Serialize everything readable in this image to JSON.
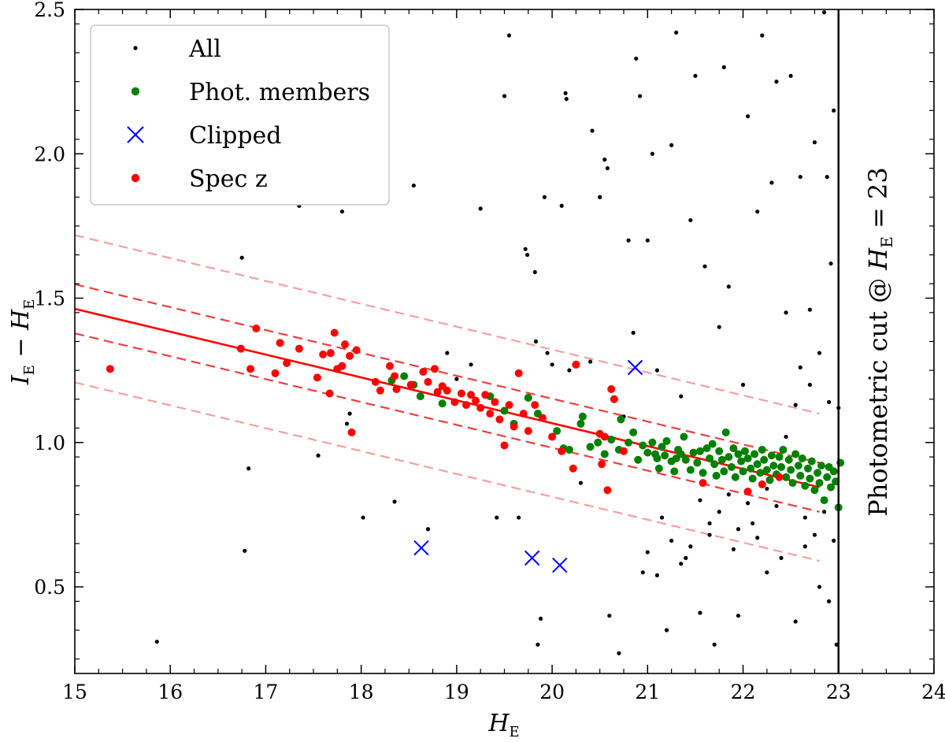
{
  "chart_data": {
    "type": "scatter",
    "title": "",
    "xlabel": "H_E",
    "ylabel": "I_E − H_E",
    "xlim": [
      15,
      24
    ],
    "ylim": [
      0.2,
      2.5
    ],
    "xticks": [
      15,
      16,
      17,
      18,
      19,
      20,
      21,
      22,
      23,
      24
    ],
    "yticks": [
      0.5,
      1.0,
      1.5,
      2.0,
      2.5
    ],
    "xtick_labels": [
      "15",
      "16",
      "17",
      "18",
      "19",
      "20",
      "21",
      "22",
      "23",
      "24"
    ],
    "ytick_labels": [
      "0.5",
      "1.0",
      "1.5",
      "2.0",
      "2.5"
    ],
    "grid": false,
    "legend": {
      "position": "top-left",
      "entries": [
        {
          "label": "All",
          "marker": "dot",
          "color": "#000000"
        },
        {
          "label": "Phot. members",
          "marker": "circle",
          "color": "#008000"
        },
        {
          "label": "Clipped",
          "marker": "x",
          "color": "#0000ff"
        },
        {
          "label": "Spec z",
          "marker": "circle",
          "color": "#ff0000"
        }
      ]
    },
    "red_sequence": {
      "x_range": [
        15,
        22.8
      ],
      "fit": {
        "at_x15": 1.463,
        "at_x22_8": 0.845,
        "color": "#ff0000"
      },
      "inner_band_offset": 0.085,
      "outer_band_offset": 0.255,
      "inner_band_color": "#e84040",
      "outer_band_color": "#f4a0a0"
    },
    "cut": {
      "x": 23,
      "label": "Photometric cut @ H_E = 23"
    },
    "series": [
      {
        "name": "Clipped",
        "color": "#0000ff",
        "points": [
          [
            18.63,
            0.635
          ],
          [
            19.79,
            0.6
          ],
          [
            20.08,
            0.575
          ],
          [
            20.87,
            1.26
          ]
        ]
      },
      {
        "name": "Spec z",
        "color": "#ff0000",
        "points": [
          [
            15.37,
            1.255
          ],
          [
            16.74,
            1.325
          ],
          [
            16.84,
            1.255
          ],
          [
            16.9,
            1.395
          ],
          [
            17.1,
            1.24
          ],
          [
            17.15,
            1.345
          ],
          [
            17.22,
            1.275
          ],
          [
            17.35,
            1.325
          ],
          [
            17.54,
            1.225
          ],
          [
            17.6,
            1.305
          ],
          [
            17.67,
            1.17
          ],
          [
            17.68,
            1.31
          ],
          [
            17.72,
            1.38
          ],
          [
            17.75,
            1.255
          ],
          [
            17.8,
            1.265
          ],
          [
            17.83,
            1.34
          ],
          [
            17.88,
            1.3
          ],
          [
            17.9,
            1.035
          ],
          [
            17.95,
            1.32
          ],
          [
            18.15,
            1.21
          ],
          [
            18.2,
            1.18
          ],
          [
            18.3,
            1.265
          ],
          [
            18.35,
            1.23
          ],
          [
            18.37,
            1.185
          ],
          [
            18.52,
            1.2
          ],
          [
            18.65,
            1.245
          ],
          [
            18.7,
            1.21
          ],
          [
            18.77,
            1.255
          ],
          [
            18.8,
            1.175
          ],
          [
            18.85,
            1.195
          ],
          [
            18.9,
            1.18
          ],
          [
            18.98,
            1.14
          ],
          [
            19.05,
            1.17
          ],
          [
            19.1,
            1.13
          ],
          [
            19.15,
            1.165
          ],
          [
            19.2,
            1.145
          ],
          [
            19.25,
            1.12
          ],
          [
            19.3,
            1.165
          ],
          [
            19.35,
            1.1
          ],
          [
            19.4,
            1.14
          ],
          [
            19.45,
            1.08
          ],
          [
            19.5,
            0.99
          ],
          [
            19.55,
            1.13
          ],
          [
            19.6,
            1.055
          ],
          [
            19.65,
            1.24
          ],
          [
            19.7,
            1.1
          ],
          [
            19.75,
            1.04
          ],
          [
            19.82,
            1.13
          ],
          [
            19.9,
            1.085
          ],
          [
            20.0,
            1.02
          ],
          [
            20.1,
            0.97
          ],
          [
            20.22,
            0.91
          ],
          [
            20.25,
            1.27
          ],
          [
            20.5,
            1.03
          ],
          [
            20.52,
            0.925
          ],
          [
            20.55,
            1.02
          ],
          [
            20.58,
            0.835
          ],
          [
            20.62,
            1.185
          ],
          [
            20.65,
            1.15
          ],
          [
            20.75,
            0.97
          ],
          [
            21.58,
            0.86
          ],
          [
            22.05,
            0.83
          ],
          [
            22.2,
            0.855
          ],
          [
            22.38,
            0.88
          ]
        ]
      },
      {
        "name": "Phot. members",
        "color": "#008000",
        "points": [
          [
            18.32,
            1.215
          ],
          [
            18.45,
            1.23
          ],
          [
            18.55,
            1.2
          ],
          [
            18.62,
            1.16
          ],
          [
            18.85,
            1.135
          ],
          [
            19.35,
            1.16
          ],
          [
            19.5,
            1.11
          ],
          [
            19.6,
            1.065
          ],
          [
            19.75,
            1.155
          ],
          [
            19.85,
            1.1
          ],
          [
            20.05,
            1.04
          ],
          [
            20.12,
            0.98
          ],
          [
            20.18,
            0.975
          ],
          [
            20.3,
            1.065
          ],
          [
            20.32,
            1.09
          ],
          [
            20.4,
            0.985
          ],
          [
            20.48,
            1.0
          ],
          [
            20.55,
            0.96
          ],
          [
            20.62,
            1.01
          ],
          [
            20.7,
            0.975
          ],
          [
            20.72,
            1.08
          ],
          [
            20.8,
            1.0
          ],
          [
            20.85,
            1.035
          ],
          [
            20.9,
            0.94
          ],
          [
            20.95,
            0.99
          ],
          [
            21.0,
            0.965
          ],
          [
            21.05,
            1.0
          ],
          [
            21.08,
            0.96
          ],
          [
            21.1,
            0.945
          ],
          [
            21.12,
            0.91
          ],
          [
            21.15,
            0.985
          ],
          [
            21.18,
            0.955
          ],
          [
            21.2,
            1.005
          ],
          [
            21.25,
            0.935
          ],
          [
            21.28,
            0.9
          ],
          [
            21.3,
            0.945
          ],
          [
            21.32,
            0.975
          ],
          [
            21.35,
            0.96
          ],
          [
            21.38,
            1.02
          ],
          [
            21.4,
            0.94
          ],
          [
            21.45,
            0.905
          ],
          [
            21.48,
            0.965
          ],
          [
            21.52,
            0.93
          ],
          [
            21.55,
            0.97
          ],
          [
            21.58,
            0.895
          ],
          [
            21.62,
            0.98
          ],
          [
            21.65,
            0.945
          ],
          [
            21.68,
            0.995
          ],
          [
            21.7,
            0.925
          ],
          [
            21.72,
            0.885
          ],
          [
            21.75,
            0.97
          ],
          [
            21.78,
            0.94
          ],
          [
            21.8,
            0.9
          ],
          [
            21.82,
            1.035
          ],
          [
            21.85,
            0.95
          ],
          [
            21.88,
            0.915
          ],
          [
            21.9,
            0.98
          ],
          [
            21.92,
            0.88
          ],
          [
            21.95,
            0.96
          ],
          [
            21.98,
            0.935
          ],
          [
            22.0,
            0.9
          ],
          [
            22.02,
            0.97
          ],
          [
            22.05,
            0.945
          ],
          [
            22.08,
            0.91
          ],
          [
            22.1,
            0.875
          ],
          [
            22.12,
            0.96
          ],
          [
            22.15,
            0.925
          ],
          [
            22.18,
            0.895
          ],
          [
            22.2,
            0.975
          ],
          [
            22.22,
            0.94
          ],
          [
            22.25,
            0.905
          ],
          [
            22.28,
            0.87
          ],
          [
            22.3,
            0.955
          ],
          [
            22.32,
            0.92
          ],
          [
            22.35,
            0.89
          ],
          [
            22.38,
            0.95
          ],
          [
            22.4,
            0.915
          ],
          [
            22.42,
            0.975
          ],
          [
            22.45,
            0.88
          ],
          [
            22.48,
            0.94
          ],
          [
            22.5,
            0.905
          ],
          [
            22.52,
            0.86
          ],
          [
            22.55,
            0.96
          ],
          [
            22.58,
            0.92
          ],
          [
            22.6,
            0.885
          ],
          [
            22.62,
            0.945
          ],
          [
            22.65,
            0.85
          ],
          [
            22.68,
            0.91
          ],
          [
            22.7,
            0.875
          ],
          [
            22.72,
            0.935
          ],
          [
            22.75,
            0.835
          ],
          [
            22.78,
            0.895
          ],
          [
            22.8,
            0.86
          ],
          [
            22.82,
            0.92
          ],
          [
            22.85,
            0.8
          ],
          [
            22.88,
            0.88
          ],
          [
            22.9,
            0.915
          ],
          [
            22.92,
            0.845
          ],
          [
            22.95,
            0.9
          ],
          [
            22.97,
            0.865
          ],
          [
            23.0,
            0.775
          ],
          [
            23.02,
            0.93
          ]
        ]
      },
      {
        "name": "All",
        "color": "#000000",
        "points": [
          [
            15.86,
            0.31
          ],
          [
            16.75,
            1.64
          ],
          [
            16.78,
            0.625
          ],
          [
            16.82,
            0.91
          ],
          [
            17.35,
            1.82
          ],
          [
            17.55,
            0.955
          ],
          [
            17.8,
            1.8
          ],
          [
            17.85,
            1.065
          ],
          [
            17.88,
            1.1
          ],
          [
            18.02,
            0.74
          ],
          [
            18.35,
            0.795
          ],
          [
            18.55,
            1.89
          ],
          [
            18.7,
            0.7
          ],
          [
            18.9,
            1.31
          ],
          [
            19.0,
            1.22
          ],
          [
            19.15,
            1.27
          ],
          [
            19.25,
            1.81
          ],
          [
            19.42,
            0.74
          ],
          [
            19.5,
            2.2
          ],
          [
            19.55,
            2.41
          ],
          [
            19.65,
            0.74
          ],
          [
            19.72,
            1.67
          ],
          [
            19.74,
            1.65
          ],
          [
            19.82,
            1.59
          ],
          [
            19.83,
            1.35
          ],
          [
            19.85,
            0.3
          ],
          [
            19.88,
            0.39
          ],
          [
            19.92,
            1.85
          ],
          [
            19.95,
            1.31
          ],
          [
            20.0,
            1.27
          ],
          [
            20.1,
            1.82
          ],
          [
            20.14,
            2.21
          ],
          [
            20.15,
            2.19
          ],
          [
            20.18,
            1.25
          ],
          [
            20.3,
            0.86
          ],
          [
            20.4,
            1.28
          ],
          [
            20.42,
            2.08
          ],
          [
            20.5,
            1.85
          ],
          [
            20.55,
            1.98
          ],
          [
            20.58,
            1.95
          ],
          [
            20.6,
            0.4
          ],
          [
            20.7,
            0.27
          ],
          [
            20.75,
            1.09
          ],
          [
            20.8,
            1.7
          ],
          [
            20.85,
            1.38
          ],
          [
            20.88,
            2.33
          ],
          [
            20.92,
            2.2
          ],
          [
            20.95,
            0.55
          ],
          [
            21.0,
            1.7
          ],
          [
            21.05,
            2.0
          ],
          [
            21.1,
            1.25
          ],
          [
            21.15,
            0.74
          ],
          [
            21.2,
            0.35
          ],
          [
            21.25,
            2.03
          ],
          [
            21.3,
            2.42
          ],
          [
            21.35,
            1.16
          ],
          [
            21.4,
            0.6
          ],
          [
            21.45,
            1.77
          ],
          [
            21.5,
            2.27
          ],
          [
            21.55,
            0.41
          ],
          [
            21.6,
            1.61
          ],
          [
            21.65,
            0.72
          ],
          [
            21.7,
            0.3
          ],
          [
            21.75,
            1.4
          ],
          [
            21.8,
            2.3
          ],
          [
            21.85,
            1.54
          ],
          [
            21.9,
            0.63
          ],
          [
            21.95,
            0.4
          ],
          [
            22.0,
            1.2
          ],
          [
            22.05,
            2.13
          ],
          [
            22.1,
            0.72
          ],
          [
            22.15,
            1.8
          ],
          [
            22.2,
            2.41
          ],
          [
            22.25,
            0.55
          ],
          [
            22.3,
            1.9
          ],
          [
            22.35,
            2.25
          ],
          [
            22.4,
            0.6
          ],
          [
            22.45,
            1.45
          ],
          [
            22.5,
            2.27
          ],
          [
            22.55,
            0.38
          ],
          [
            22.6,
            1.92
          ],
          [
            22.65,
            0.64
          ],
          [
            22.7,
            1.46
          ],
          [
            22.75,
            2.04
          ],
          [
            22.8,
            0.5
          ],
          [
            22.85,
            2.49
          ],
          [
            22.88,
            1.92
          ],
          [
            22.9,
            0.45
          ],
          [
            22.92,
            1.62
          ],
          [
            22.95,
            2.15
          ],
          [
            22.98,
            0.3
          ],
          [
            23.0,
            1.12
          ],
          [
            22.55,
            1.13
          ],
          [
            22.45,
            1.02
          ],
          [
            22.35,
            0.78
          ],
          [
            22.25,
            0.84
          ],
          [
            22.15,
            0.67
          ],
          [
            22.05,
            0.79
          ],
          [
            21.95,
            0.7
          ],
          [
            21.85,
            0.82
          ],
          [
            21.75,
            0.76
          ],
          [
            21.65,
            0.68
          ],
          [
            21.55,
            0.8
          ],
          [
            21.45,
            0.64
          ],
          [
            21.35,
            0.58
          ],
          [
            21.25,
            0.66
          ],
          [
            21.1,
            0.54
          ],
          [
            21.0,
            0.62
          ],
          [
            22.65,
            0.74
          ],
          [
            22.75,
            0.68
          ],
          [
            22.85,
            0.76
          ],
          [
            22.95,
            0.66
          ],
          [
            22.6,
            1.26
          ],
          [
            22.7,
            1.2
          ],
          [
            22.8,
            1.31
          ],
          [
            22.9,
            1.14
          ]
        ]
      }
    ]
  }
}
